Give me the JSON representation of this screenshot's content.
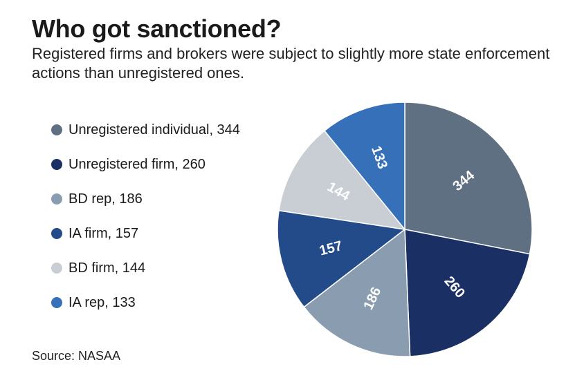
{
  "chart_data": {
    "type": "pie",
    "title": "Who got sanctioned?",
    "subtitle": "Registered firms and brokers were subject to slightly more state enforcement actions than unregistered ones.",
    "source": "Source: NASAA",
    "slices": [
      {
        "label": "Unregistered individual",
        "value": 344,
        "legend_text": "Unregistered individual, 344",
        "color": "#5f7083",
        "label_color": "#ffffff"
      },
      {
        "label": "Unregistered firm",
        "value": 260,
        "legend_text": "Unregistered firm, 260",
        "color": "#1a2f63",
        "label_color": "#ffffff"
      },
      {
        "label": "BD rep",
        "value": 186,
        "legend_text": "BD rep, 186",
        "color": "#8a9db0",
        "label_color": "#ffffff"
      },
      {
        "label": "IA firm",
        "value": 157,
        "legend_text": "IA firm, 157",
        "color": "#234b8a",
        "label_color": "#ffffff"
      },
      {
        "label": "BD firm",
        "value": 144,
        "legend_text": "BD firm, 144",
        "color": "#c8ced3",
        "label_color": "#ffffff"
      },
      {
        "label": "IA rep",
        "value": 133,
        "legend_text": "IA rep, 133",
        "color": "#3570b9",
        "label_color": "#ffffff"
      }
    ]
  }
}
